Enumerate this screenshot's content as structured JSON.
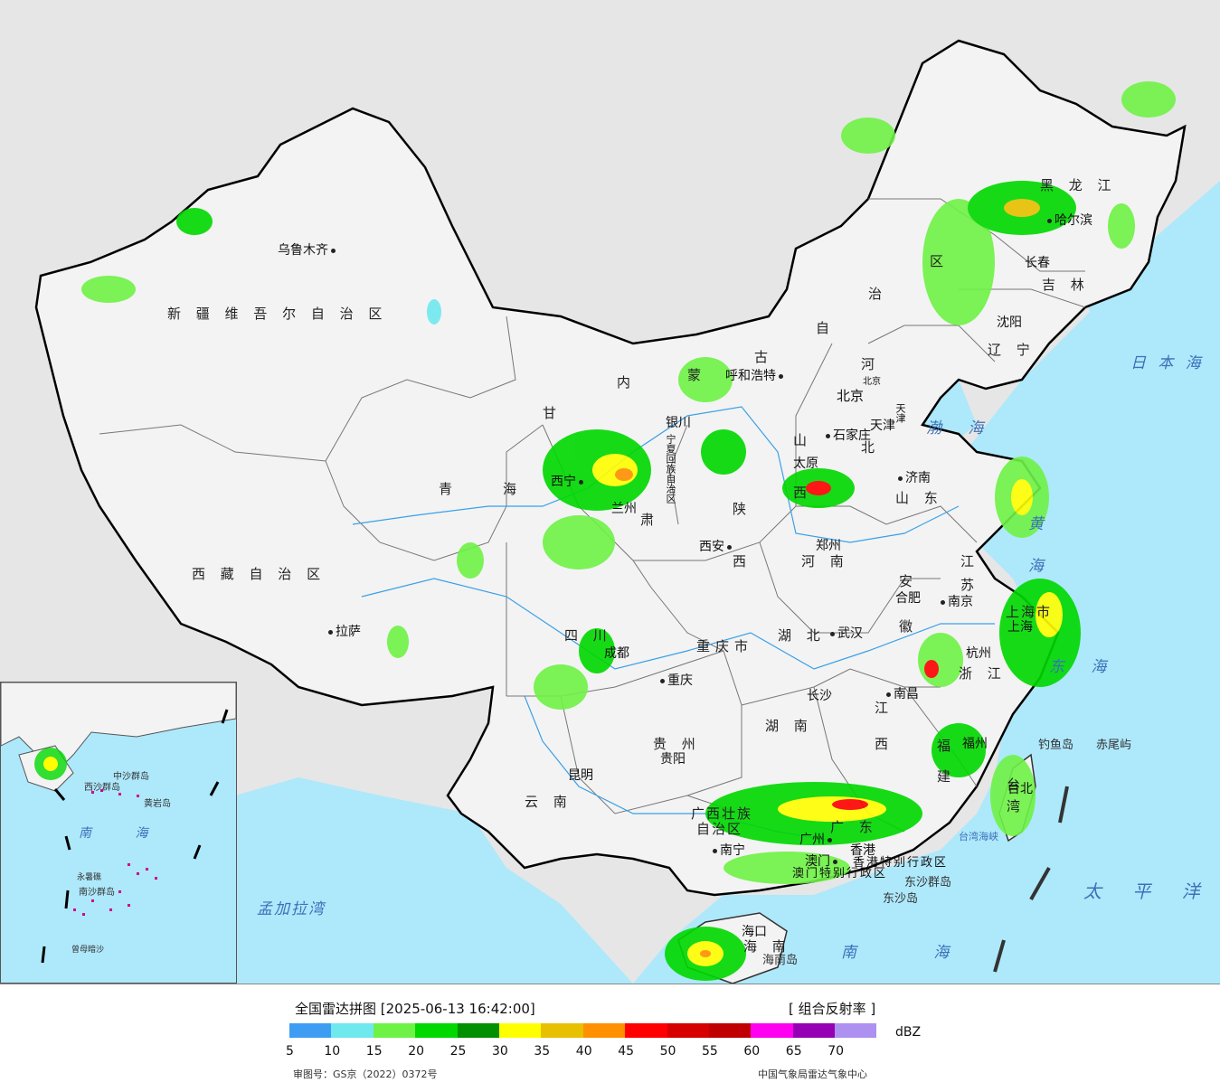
{
  "legend": {
    "title": "全国雷达拼图 [2025-06-13 16:42:00]",
    "product": "[ 组合反射率 ]",
    "unit": "dBZ",
    "colors": [
      "#3f9cf3",
      "#6fe8ee",
      "#6ff246",
      "#00d800",
      "#009000",
      "#ffff00",
      "#e7c000",
      "#ff9000",
      "#ff0000",
      "#d60000",
      "#c00000",
      "#ff00f0",
      "#9600b4",
      "#ad90f0"
    ],
    "ticks": [
      "5",
      "10",
      "15",
      "20",
      "25",
      "30",
      "35",
      "40",
      "45",
      "50",
      "55",
      "60",
      "65",
      "70"
    ],
    "approval": "审图号：GS京（2022）0372号",
    "source": "中国气象局雷达气象中心"
  },
  "provinces": {
    "xinjiang": "新 疆 维 吾 尔 自 治 区",
    "xizang": "西 藏 自 治 区",
    "qinghai_1": "青",
    "qinghai_2": "海",
    "gansu_1": "甘",
    "gansu_2": "肃",
    "neimenggu_1": "内",
    "neimenggu_2": "蒙",
    "neimenggu_3": "古",
    "neimenggu_4": "自",
    "neimenggu_5": "治",
    "neimenggu_6": "区",
    "heilongjiang": "黑 龙 江",
    "jilin": "吉 林",
    "liaoning": "辽 宁",
    "hebei_1": "河",
    "hebei_2": "北",
    "shanxi_1": "山",
    "shanxi_2": "西",
    "shaanxi_1": "陕",
    "shaanxi_2": "西",
    "shandong": "山 东",
    "henan": "河 南",
    "jiangsu_1": "江",
    "jiangsu_2": "苏",
    "anhui_1": "安",
    "anhui_2": "徽",
    "hubei": "湖 北",
    "sichuan": "四 川",
    "chongqing": "重庆市",
    "zhejiang": "浙 江",
    "hunan": "湖 南",
    "jiangxi_1": "江",
    "jiangxi_2": "西",
    "fujian_1": "福",
    "fujian_2": "建",
    "guizhou": "贵 州",
    "yunnan": "云 南",
    "guangxi_1": "广西壮族",
    "guangxi_2": "自治区",
    "guangdong": "广 东",
    "hainan": "海 南",
    "taiwan": "台 湾",
    "ningxia": "宁夏回族自治区",
    "shanghai": "上海市",
    "tianjin": "天津",
    "beijing": "北京",
    "hk": "香港特别行政区",
    "macao": "澳门特别行政区"
  },
  "cities": {
    "urumqi": "乌鲁木齐",
    "lhasa": "拉萨",
    "xining": "西宁",
    "lanzhou": "兰州",
    "yinchuan": "银川",
    "hohhot": "呼和浩特",
    "beijing": "北京",
    "tianjin": "天津",
    "shijiazhuang": "石家庄",
    "taiyuan": "太原",
    "jinan": "济南",
    "zhengzhou": "郑州",
    "xian": "西安",
    "harbin": "哈尔滨",
    "changchun": "长春",
    "shenyang": "沈阳",
    "hefei": "合肥",
    "nanjing": "南京",
    "shanghai": "上海",
    "hangzhou": "杭州",
    "wuhan": "武汉",
    "chengdu": "成都",
    "chongqing": "重庆",
    "changsha": "长沙",
    "nanchang": "南昌",
    "fuzhou": "福州",
    "guiyang": "贵阳",
    "kunming": "昆明",
    "nanning": "南宁",
    "guangzhou": "广州",
    "macao": "澳门",
    "hongkong": "香港",
    "haikou": "海口",
    "taipei": "台北"
  },
  "seas": {
    "bohai": "渤 海",
    "huanghai": "黄 海",
    "donghai": "东 海",
    "nanhai": "南 海",
    "japan_sea": "日 本 海",
    "pacific": "太 平 洋",
    "bengal": "孟加拉湾",
    "taiwan_strait": "台湾海峡"
  },
  "islands": {
    "diaoyu": "钓鱼岛",
    "chiwei": "赤尾屿",
    "dongsha": "东沙岛",
    "hainan_island": "海南岛",
    "dongsha_qundao": "东沙群岛"
  },
  "inset": {
    "nanhai": "南 海",
    "xisha": "西沙群岛",
    "zhongsha": "中沙群岛",
    "huangyan": "黄岩岛",
    "nansha": "南沙群岛",
    "zengmu": "曾母暗沙",
    "yongshu": "永暑礁"
  }
}
